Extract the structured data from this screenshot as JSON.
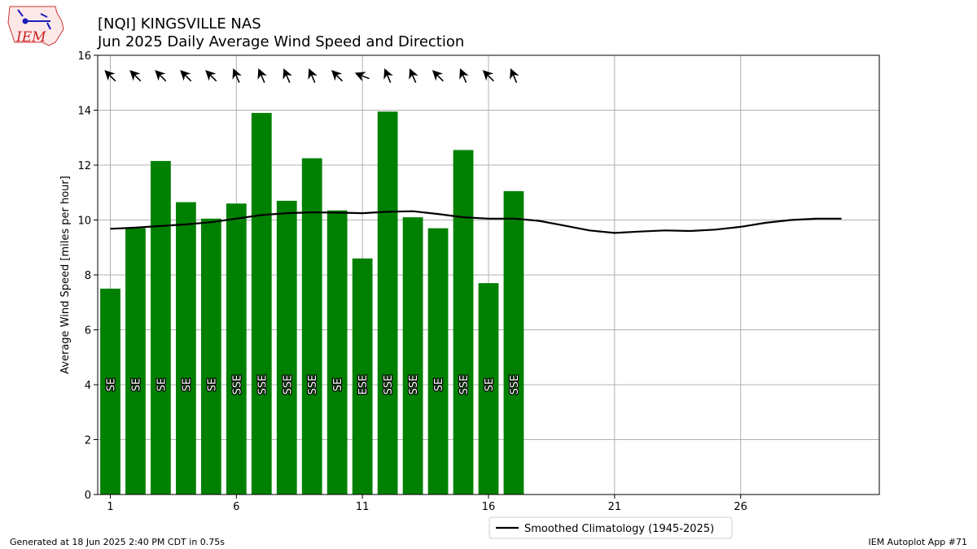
{
  "title_line1": "[NQI] KINGSVILLE NAS",
  "title_line2": "Jun 2025 Daily Average Wind Speed and Direction",
  "logo_text": "IEM",
  "footer_left": "Generated at 18 Jun 2025 2:40 PM CDT in 0.75s",
  "footer_right": "IEM Autoplot App #71",
  "colors": {
    "bar": "#008000",
    "climo": "#000000",
    "grid": "#b0b0b0",
    "logo_text": "#cc2222"
  },
  "chart_data": {
    "type": "bar",
    "ylabel": "Average Wind Speed [miles per hour]",
    "xlabel": "",
    "xlim": [
      0.5,
      31.5
    ],
    "ylim": [
      0,
      16
    ],
    "xticks": [
      1,
      6,
      11,
      16,
      21,
      26
    ],
    "yticks": [
      0,
      2,
      4,
      6,
      8,
      10,
      12,
      14,
      16
    ],
    "grid": true,
    "legend": {
      "placement": "bottom-center",
      "entries": [
        "Smoothed Climatology (1945-2025)"
      ]
    },
    "days": [
      1,
      2,
      3,
      4,
      5,
      6,
      7,
      8,
      9,
      10,
      11,
      12,
      13,
      14,
      15,
      16,
      17
    ],
    "speeds": [
      7.5,
      9.7,
      12.15,
      10.65,
      10.05,
      10.6,
      13.9,
      10.7,
      12.25,
      10.35,
      8.6,
      13.95,
      10.1,
      9.7,
      12.55,
      7.7,
      11.05
    ],
    "directions": [
      "SE",
      "SE",
      "SE",
      "SE",
      "SE",
      "SSE",
      "SSE",
      "SSE",
      "SSE",
      "SE",
      "ESE",
      "SSE",
      "SSE",
      "SE",
      "SSE",
      "SE",
      "SSE"
    ],
    "direction_degrees": [
      135,
      135,
      135,
      135,
      135,
      157,
      157,
      157,
      157,
      135,
      112,
      157,
      157,
      135,
      157,
      135,
      157
    ],
    "climatology": {
      "name": "Smoothed Climatology (1945-2025)",
      "x": [
        1,
        2,
        3,
        4,
        5,
        6,
        7,
        8,
        9,
        10,
        11,
        12,
        13,
        14,
        15,
        16,
        17,
        18,
        19,
        20,
        21,
        22,
        23,
        24,
        25,
        26,
        27,
        28,
        29,
        30
      ],
      "y": [
        9.68,
        9.72,
        9.78,
        9.84,
        9.92,
        10.05,
        10.18,
        10.25,
        10.28,
        10.27,
        10.25,
        10.3,
        10.32,
        10.22,
        10.1,
        10.05,
        10.05,
        9.97,
        9.8,
        9.62,
        9.53,
        9.58,
        9.62,
        9.6,
        9.65,
        9.75,
        9.9,
        10.0,
        10.05,
        10.05
      ]
    }
  }
}
